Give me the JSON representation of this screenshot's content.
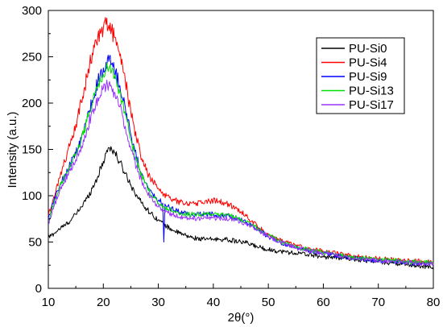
{
  "chart_data": {
    "type": "line",
    "title": "",
    "xlabel": "2θ(°)",
    "ylabel": "Intensity (a.u.)",
    "xlim": [
      10,
      80
    ],
    "ylim": [
      0,
      300
    ],
    "xticks": [
      10,
      20,
      30,
      40,
      50,
      60,
      70,
      80
    ],
    "yticks": [
      0,
      50,
      100,
      150,
      200,
      250,
      300
    ],
    "grid": false,
    "legend_position": "top-right",
    "series": [
      {
        "name": "PU-Si0",
        "color": "#000000",
        "x": [
          10,
          11,
          12,
          13,
          14,
          15,
          16,
          17,
          18,
          19,
          20,
          20.5,
          21,
          21.5,
          22,
          23,
          24,
          25,
          26,
          27,
          28,
          29,
          30,
          31,
          32,
          33,
          34,
          35,
          36,
          37,
          38,
          39,
          40,
          41,
          42,
          43,
          44,
          45,
          46,
          47,
          48,
          50,
          52,
          55,
          58,
          60,
          63,
          65,
          68,
          70,
          73,
          75,
          78,
          80
        ],
        "y": [
          55,
          59,
          64,
          68,
          73,
          80,
          88,
          97,
          108,
          121,
          137,
          146,
          152,
          151,
          147,
          136,
          124,
          112,
          101,
          92,
          85,
          79,
          74,
          69,
          65,
          62,
          59,
          57,
          55,
          54,
          53,
          53,
          53,
          53,
          53,
          52,
          51,
          50,
          49,
          47,
          45,
          42,
          40,
          38,
          36,
          34,
          33,
          32,
          30,
          29,
          27,
          26,
          24,
          23
        ]
      },
      {
        "name": "PU-Si4",
        "color": "#ff0000",
        "x": [
          10,
          11,
          12,
          13,
          14,
          15,
          16,
          17,
          18,
          19,
          20,
          20.5,
          21,
          21.5,
          22,
          23,
          24,
          25,
          26,
          27,
          28,
          29,
          30,
          31,
          32,
          33,
          34,
          35,
          36,
          37,
          38,
          39,
          40,
          41,
          42,
          43,
          44,
          45,
          46,
          47,
          48,
          50,
          52,
          55,
          58,
          60,
          63,
          65,
          68,
          70,
          73,
          75,
          78,
          80
        ],
        "y": [
          78,
          99,
          119,
          137,
          156,
          177,
          201,
          228,
          254,
          272,
          281,
          285,
          284,
          279,
          271,
          251,
          224,
          190,
          162,
          140,
          125,
          115,
          108,
          102,
          98,
          95,
          93,
          92,
          92,
          92,
          93,
          94,
          95,
          94,
          92,
          90,
          87,
          83,
          78,
          73,
          67,
          58,
          52,
          46,
          42,
          40,
          37,
          35,
          33,
          32,
          31,
          30,
          29,
          28
        ]
      },
      {
        "name": "PU-Si9",
        "color": "#0000ff",
        "x": [
          10,
          11,
          12,
          13,
          14,
          15,
          16,
          17,
          18,
          19,
          20,
          20.5,
          21,
          21.5,
          22,
          23,
          24,
          25,
          26,
          27,
          28,
          29,
          30,
          30.8,
          31,
          31.2,
          32,
          33,
          34,
          35,
          36,
          37,
          38,
          39,
          40,
          41,
          42,
          43,
          44,
          45,
          46,
          47,
          48,
          50,
          52,
          55,
          58,
          60,
          63,
          65,
          68,
          70,
          73,
          75,
          78,
          80
        ],
        "y": [
          75,
          94,
          110,
          122,
          134,
          146,
          162,
          181,
          203,
          223,
          238,
          244,
          245,
          242,
          236,
          219,
          195,
          166,
          142,
          124,
          111,
          102,
          95,
          92,
          50,
          91,
          87,
          84,
          82,
          81,
          80,
          80,
          80,
          80,
          80,
          79,
          79,
          78,
          76,
          74,
          71,
          68,
          64,
          56,
          50,
          44,
          40,
          38,
          35,
          33,
          31,
          30,
          29,
          28,
          27,
          26
        ]
      },
      {
        "name": "PU-Si13",
        "color": "#00dd00",
        "x": [
          10,
          11,
          12,
          13,
          14,
          15,
          16,
          17,
          18,
          19,
          20,
          20.5,
          21,
          21.5,
          22,
          23,
          24,
          25,
          26,
          27,
          28,
          29,
          30,
          31,
          32,
          33,
          34,
          35,
          36,
          37,
          38,
          39,
          40,
          41,
          42,
          43,
          44,
          45,
          46,
          47,
          48,
          50,
          52,
          55,
          58,
          60,
          63,
          65,
          68,
          70,
          73,
          75,
          78,
          80
        ],
        "y": [
          73,
          92,
          108,
          121,
          132,
          145,
          161,
          180,
          200,
          218,
          231,
          236,
          237,
          234,
          228,
          211,
          188,
          161,
          138,
          121,
          108,
          99,
          92,
          88,
          85,
          83,
          81,
          80,
          80,
          80,
          80,
          80,
          80,
          80,
          79,
          78,
          77,
          75,
          72,
          69,
          65,
          57,
          51,
          45,
          41,
          39,
          36,
          34,
          32,
          31,
          30,
          29,
          28,
          27
        ]
      },
      {
        "name": "PU-Si17",
        "color": "#9933ff",
        "x": [
          10,
          11,
          12,
          13,
          14,
          15,
          16,
          17,
          18,
          19,
          20,
          20.5,
          21,
          21.5,
          22,
          23,
          24,
          25,
          26,
          27,
          28,
          29,
          30,
          31,
          32,
          33,
          34,
          35,
          36,
          37,
          38,
          39,
          40,
          41,
          42,
          43,
          44,
          45,
          46,
          47,
          48,
          50,
          52,
          55,
          58,
          60,
          63,
          65,
          68,
          70,
          73,
          75,
          78,
          80
        ],
        "y": [
          70,
          88,
          104,
          116,
          127,
          139,
          154,
          172,
          191,
          206,
          216,
          219,
          220,
          217,
          212,
          196,
          175,
          151,
          131,
          115,
          103,
          94,
          88,
          84,
          81,
          79,
          77,
          76,
          75,
          75,
          75,
          75,
          76,
          76,
          76,
          75,
          74,
          72,
          70,
          67,
          63,
          56,
          50,
          44,
          40,
          38,
          35,
          33,
          31,
          30,
          29,
          28,
          27,
          26
        ]
      }
    ]
  }
}
